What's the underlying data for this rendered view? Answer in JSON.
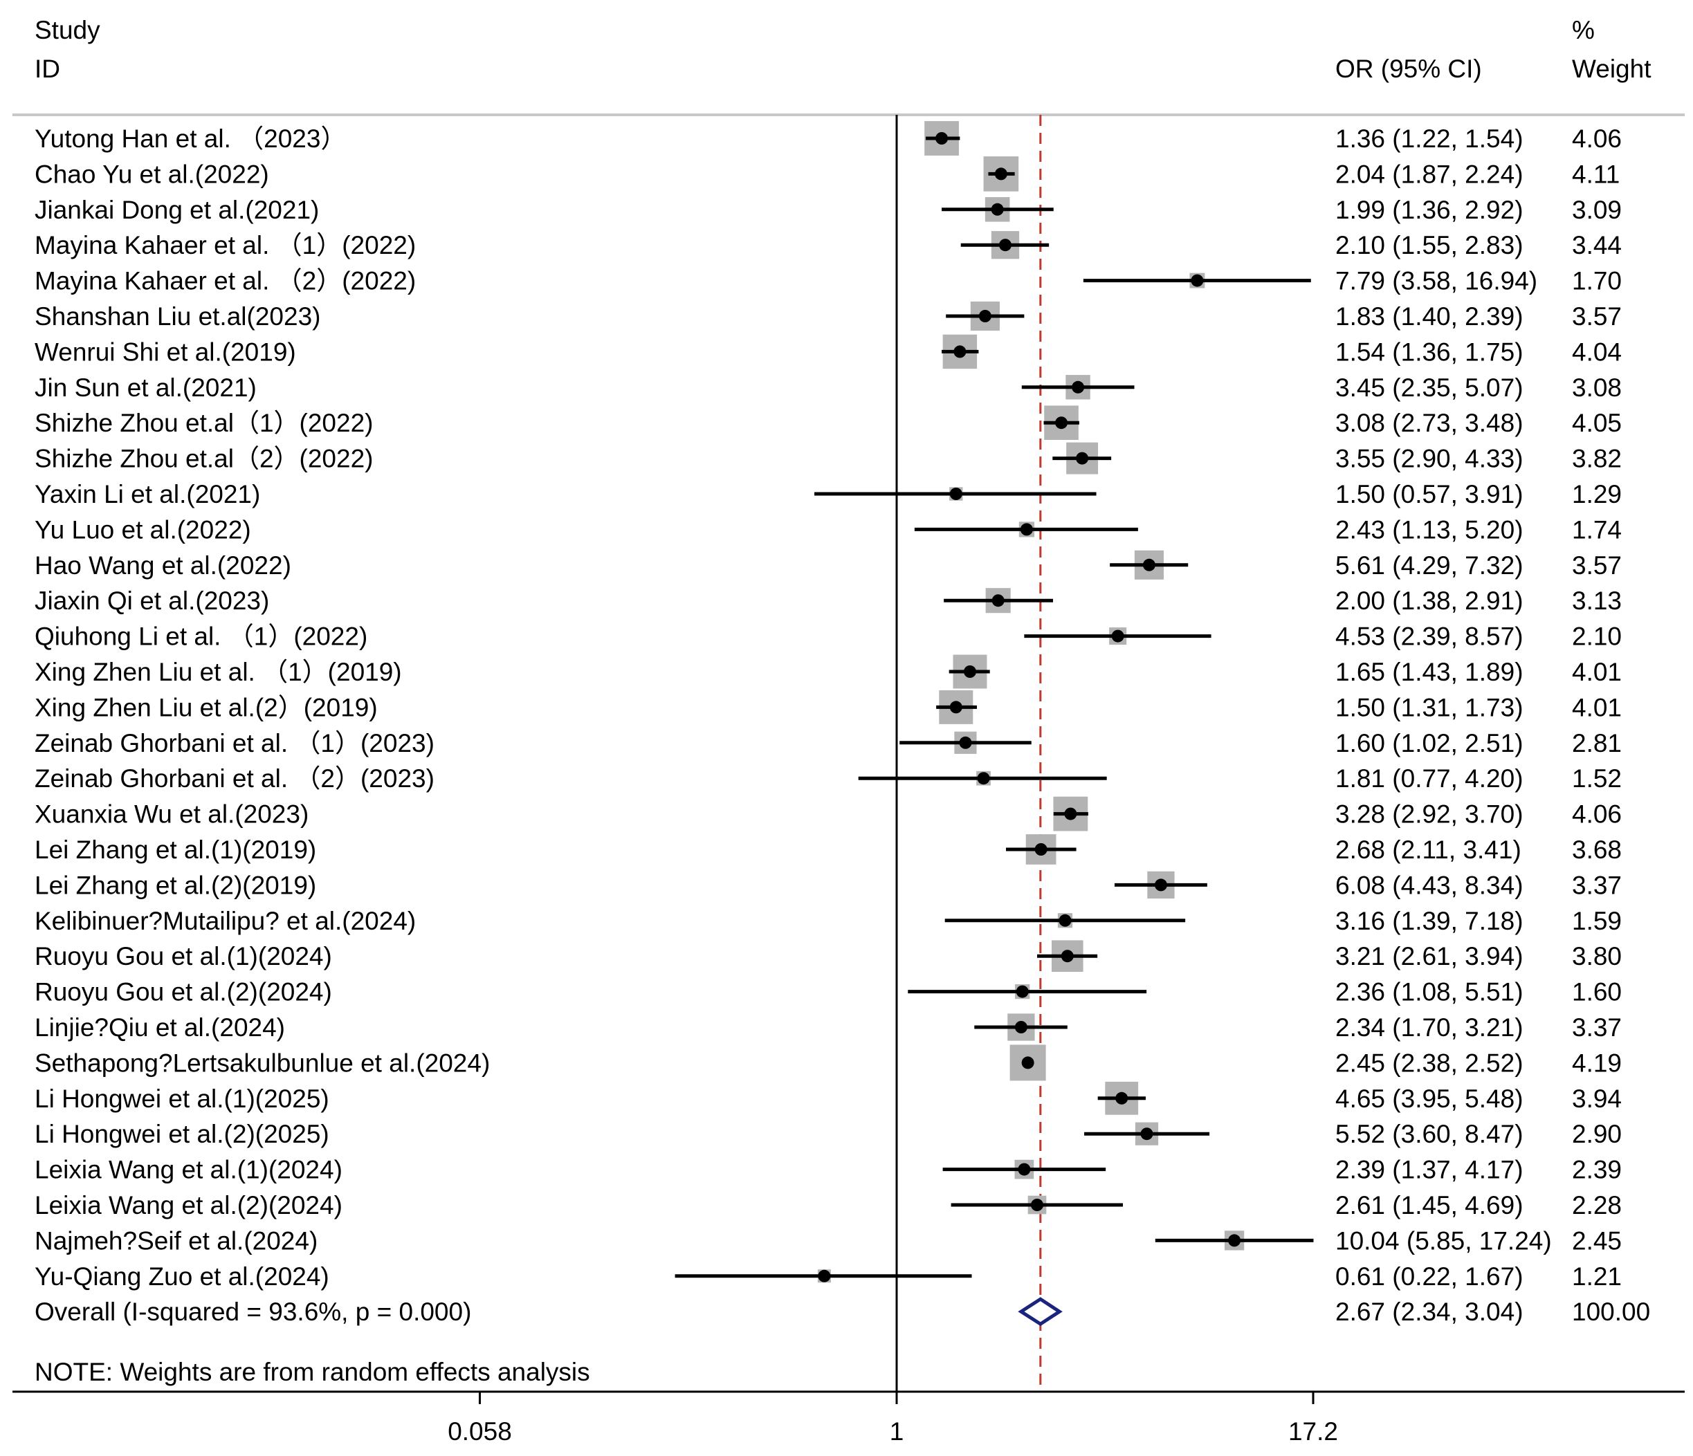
{
  "chart_data": {
    "type": "forest",
    "header": {
      "study_line1": "Study",
      "study_line2": "ID",
      "effect_label": "OR (95% CI)",
      "weight_line1": "%",
      "weight_line2": "Weight"
    },
    "scale": "log",
    "xlim": [
      0.058,
      17.2
    ],
    "x_ticks": [
      {
        "value": 0.058,
        "label": "0.058"
      },
      {
        "value": 1,
        "label": "1"
      },
      {
        "value": 17.2,
        "label": "17.2"
      }
    ],
    "null_line": 1,
    "studies": [
      {
        "id": "Yutong Han et al. （2023）",
        "or": 1.36,
        "lo": 1.22,
        "hi": 1.54,
        "ci_text": "1.36 (1.22, 1.54)",
        "weight": 4.06,
        "weight_text": "4.06"
      },
      {
        "id": "Chao Yu et al.(2022)",
        "or": 2.04,
        "lo": 1.87,
        "hi": 2.24,
        "ci_text": "2.04 (1.87, 2.24)",
        "weight": 4.11,
        "weight_text": "4.11"
      },
      {
        "id": "Jiankai Dong et al.(2021)",
        "or": 1.99,
        "lo": 1.36,
        "hi": 2.92,
        "ci_text": "1.99 (1.36, 2.92)",
        "weight": 3.09,
        "weight_text": "3.09"
      },
      {
        "id": "Mayina Kahaer et al. （1）(2022)",
        "or": 2.1,
        "lo": 1.55,
        "hi": 2.83,
        "ci_text": "2.10 (1.55, 2.83)",
        "weight": 3.44,
        "weight_text": "3.44"
      },
      {
        "id": "Mayina Kahaer et al. （2）(2022)",
        "or": 7.79,
        "lo": 3.58,
        "hi": 16.94,
        "ci_text": "7.79 (3.58, 16.94)",
        "weight": 1.7,
        "weight_text": "1.70"
      },
      {
        "id": "Shanshan Liu et.al(2023)",
        "or": 1.83,
        "lo": 1.4,
        "hi": 2.39,
        "ci_text": "1.83 (1.40, 2.39)",
        "weight": 3.57,
        "weight_text": "3.57"
      },
      {
        "id": "Wenrui Shi et al.(2019)",
        "or": 1.54,
        "lo": 1.36,
        "hi": 1.75,
        "ci_text": "1.54 (1.36, 1.75)",
        "weight": 4.04,
        "weight_text": "4.04"
      },
      {
        "id": "Jin Sun et al.(2021)",
        "or": 3.45,
        "lo": 2.35,
        "hi": 5.07,
        "ci_text": "3.45 (2.35, 5.07)",
        "weight": 3.08,
        "weight_text": "3.08"
      },
      {
        "id": "Shizhe Zhou et.al（1）(2022)",
        "or": 3.08,
        "lo": 2.73,
        "hi": 3.48,
        "ci_text": "3.08 (2.73, 3.48)",
        "weight": 4.05,
        "weight_text": "4.05"
      },
      {
        "id": "Shizhe Zhou et.al（2）(2022)",
        "or": 3.55,
        "lo": 2.9,
        "hi": 4.33,
        "ci_text": "3.55 (2.90, 4.33)",
        "weight": 3.82,
        "weight_text": "3.82"
      },
      {
        "id": "Yaxin Li et al.(2021)",
        "or": 1.5,
        "lo": 0.57,
        "hi": 3.91,
        "ci_text": "1.50 (0.57, 3.91)",
        "weight": 1.29,
        "weight_text": "1.29"
      },
      {
        "id": "Yu Luo et al.(2022)",
        "or": 2.43,
        "lo": 1.13,
        "hi": 5.2,
        "ci_text": "2.43 (1.13, 5.20)",
        "weight": 1.74,
        "weight_text": "1.74"
      },
      {
        "id": "Hao Wang et al.(2022)",
        "or": 5.61,
        "lo": 4.29,
        "hi": 7.32,
        "ci_text": "5.61 (4.29, 7.32)",
        "weight": 3.57,
        "weight_text": "3.57"
      },
      {
        "id": "Jiaxin Qi et al.(2023)",
        "or": 2.0,
        "lo": 1.38,
        "hi": 2.91,
        "ci_text": "2.00 (1.38, 2.91)",
        "weight": 3.13,
        "weight_text": "3.13"
      },
      {
        "id": "Qiuhong Li et al. （1）(2022)",
        "or": 4.53,
        "lo": 2.39,
        "hi": 8.57,
        "ci_text": "4.53 (2.39, 8.57)",
        "weight": 2.1,
        "weight_text": "2.10"
      },
      {
        "id": "Xing Zhen Liu et al. （1）(2019)",
        "or": 1.65,
        "lo": 1.43,
        "hi": 1.89,
        "ci_text": "1.65 (1.43, 1.89)",
        "weight": 4.01,
        "weight_text": "4.01"
      },
      {
        "id": "Xing Zhen Liu et al.(2）(2019)",
        "or": 1.5,
        "lo": 1.31,
        "hi": 1.73,
        "ci_text": "1.50 (1.31, 1.73)",
        "weight": 4.01,
        "weight_text": "4.01"
      },
      {
        "id": "Zeinab Ghorbani et al. （1）(2023)",
        "or": 1.6,
        "lo": 1.02,
        "hi": 2.51,
        "ci_text": "1.60 (1.02, 2.51)",
        "weight": 2.81,
        "weight_text": "2.81"
      },
      {
        "id": "Zeinab Ghorbani et al. （2）(2023)",
        "or": 1.81,
        "lo": 0.77,
        "hi": 4.2,
        "ci_text": "1.81 (0.77, 4.20)",
        "weight": 1.52,
        "weight_text": "1.52"
      },
      {
        "id": "Xuanxia Wu et al.(2023)",
        "or": 3.28,
        "lo": 2.92,
        "hi": 3.7,
        "ci_text": "3.28 (2.92, 3.70)",
        "weight": 4.06,
        "weight_text": "4.06"
      },
      {
        "id": "Lei Zhang et al.(1)(2019)",
        "or": 2.68,
        "lo": 2.11,
        "hi": 3.41,
        "ci_text": "2.68 (2.11, 3.41)",
        "weight": 3.68,
        "weight_text": "3.68"
      },
      {
        "id": "Lei Zhang et al.(2)(2019)",
        "or": 6.08,
        "lo": 4.43,
        "hi": 8.34,
        "ci_text": "6.08 (4.43, 8.34)",
        "weight": 3.37,
        "weight_text": "3.37"
      },
      {
        "id": "Kelibinuer?Mutailipu? et al.(2024)",
        "or": 3.16,
        "lo": 1.39,
        "hi": 7.18,
        "ci_text": "3.16 (1.39, 7.18)",
        "weight": 1.59,
        "weight_text": "1.59"
      },
      {
        "id": "Ruoyu Gou et al.(1)(2024)",
        "or": 3.21,
        "lo": 2.61,
        "hi": 3.94,
        "ci_text": "3.21 (2.61, 3.94)",
        "weight": 3.8,
        "weight_text": "3.80"
      },
      {
        "id": "Ruoyu Gou et al.(2)(2024)",
        "or": 2.36,
        "lo": 1.08,
        "hi": 5.51,
        "ci_text": "2.36 (1.08, 5.51)",
        "weight": 1.6,
        "weight_text": "1.60"
      },
      {
        "id": "Linjie?Qiu et al.(2024)",
        "or": 2.34,
        "lo": 1.7,
        "hi": 3.21,
        "ci_text": "2.34 (1.70, 3.21)",
        "weight": 3.37,
        "weight_text": "3.37"
      },
      {
        "id": "Sethapong?Lertsakulbunlue et al.(2024)",
        "or": 2.45,
        "lo": 2.38,
        "hi": 2.52,
        "ci_text": "2.45 (2.38, 2.52)",
        "weight": 4.19,
        "weight_text": "4.19"
      },
      {
        "id": "Li Hongwei et al.(1)(2025)",
        "or": 4.65,
        "lo": 3.95,
        "hi": 5.48,
        "ci_text": "4.65 (3.95, 5.48)",
        "weight": 3.94,
        "weight_text": "3.94"
      },
      {
        "id": "Li Hongwei et al.(2)(2025)",
        "or": 5.52,
        "lo": 3.6,
        "hi": 8.47,
        "ci_text": "5.52 (3.60, 8.47)",
        "weight": 2.9,
        "weight_text": "2.90"
      },
      {
        "id": "Leixia Wang et al.(1)(2024)",
        "or": 2.39,
        "lo": 1.37,
        "hi": 4.17,
        "ci_text": "2.39 (1.37, 4.17)",
        "weight": 2.39,
        "weight_text": "2.39"
      },
      {
        "id": "Leixia Wang et al.(2)(2024)",
        "or": 2.61,
        "lo": 1.45,
        "hi": 4.69,
        "ci_text": "2.61 (1.45, 4.69)",
        "weight": 2.28,
        "weight_text": "2.28"
      },
      {
        "id": "Najmeh?Seif et al.(2024)",
        "or": 10.04,
        "lo": 5.85,
        "hi": 17.24,
        "ci_text": "10.04 (5.85, 17.24)",
        "weight": 2.45,
        "weight_text": "2.45"
      },
      {
        "id": "Yu-Qiang Zuo et al.(2024)",
        "or": 0.61,
        "lo": 0.22,
        "hi": 1.67,
        "ci_text": "0.61 (0.22, 1.67)",
        "weight": 1.21,
        "weight_text": "1.21"
      }
    ],
    "overall": {
      "label": "Overall  (I-squared = 93.6%, p = 0.000)",
      "or": 2.67,
      "lo": 2.34,
      "hi": 3.04,
      "ci_text": "2.67 (2.34, 3.04)",
      "weight_text": "100.00"
    },
    "note": "NOTE: Weights are from random effects analysis",
    "colors": {
      "box": "#b3b3b3",
      "marker": "#000000",
      "ci_line": "#000000",
      "overall_line": "#c0392b",
      "diamond": "#1a237e",
      "rule": "#c8c8c8"
    }
  }
}
